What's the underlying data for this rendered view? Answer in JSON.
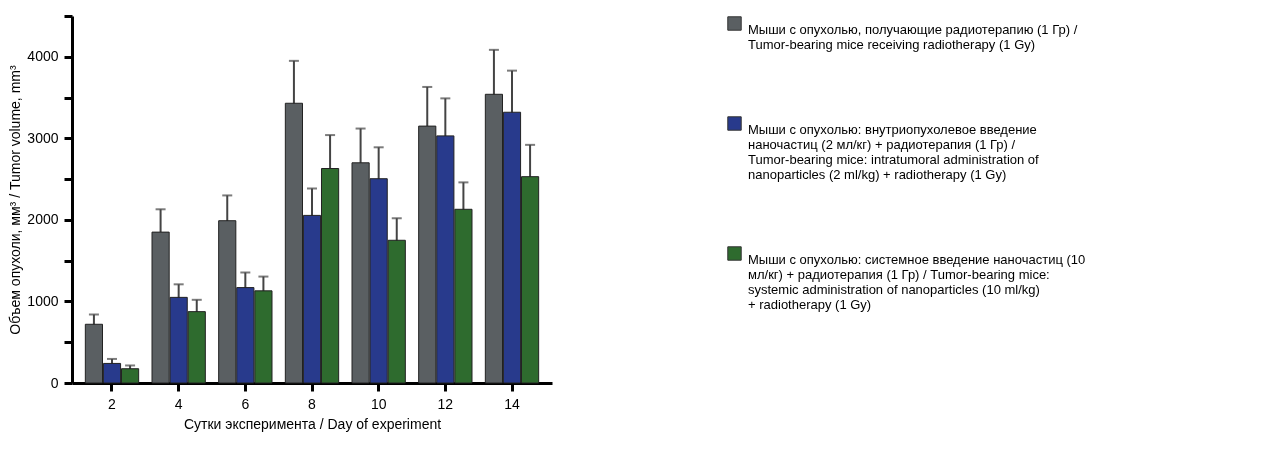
{
  "chart_data": {
    "type": "bar",
    "xlabel": "Сутки эксперимента / Day of experiment",
    "ylabel": "Объем опухоли, мм³ / Tumor volume, mm³",
    "categories": [
      "2",
      "4",
      "6",
      "8",
      "10",
      "12",
      "14"
    ],
    "series": [
      {
        "name": "Мыши с опухолью, получающие радиотерапию (1 Гр) / Tumor-bearing mice receiving radiotherapy (1 Gy)",
        "color": "#5a5f62",
        "values": [
          720,
          1850,
          1990,
          3430,
          2700,
          3150,
          3540
        ],
        "errors": [
          120,
          280,
          310,
          520,
          420,
          480,
          545
        ]
      },
      {
        "name": "Мыши с опухолью: внутриопухолевое введение наночастиц (2 мл/кг) + радиотерапия (1 Гр) / Tumor-bearing mice: intratumoral administration of nanoparticles (2 ml/kg) + radiotherapy (1 Gy)",
        "color": "#283a8c",
        "values": [
          240,
          1050,
          1170,
          2055,
          2505,
          3030,
          3320
        ],
        "errors": [
          55,
          160,
          185,
          330,
          385,
          460,
          510
        ]
      },
      {
        "name": "Мыши с опухолью: системное введение наночастиц (10 мл/кг) + радиотерапия (1 Гр) / Tumor-bearing mice: systemic administration of nanoparticles (10 ml/kg) + radiotherapy (1 Gy)",
        "color": "#2e6b2e",
        "values": [
          175,
          875,
          1130,
          2630,
          1750,
          2130,
          2530
        ],
        "errors": [
          40,
          145,
          175,
          410,
          270,
          330,
          390
        ]
      }
    ],
    "ylim": [
      0,
      4500
    ],
    "yticks": [
      0,
      {
        "value": 500,
        "label": null
      },
      1000,
      {
        "value": 1500,
        "label": null
      },
      2000,
      {
        "value": 2500,
        "label": null
      },
      3000,
      {
        "value": 3500,
        "label": null
      },
      4000,
      {
        "value": 4500,
        "label": null
      }
    ],
    "grid": false,
    "legend": "right"
  }
}
